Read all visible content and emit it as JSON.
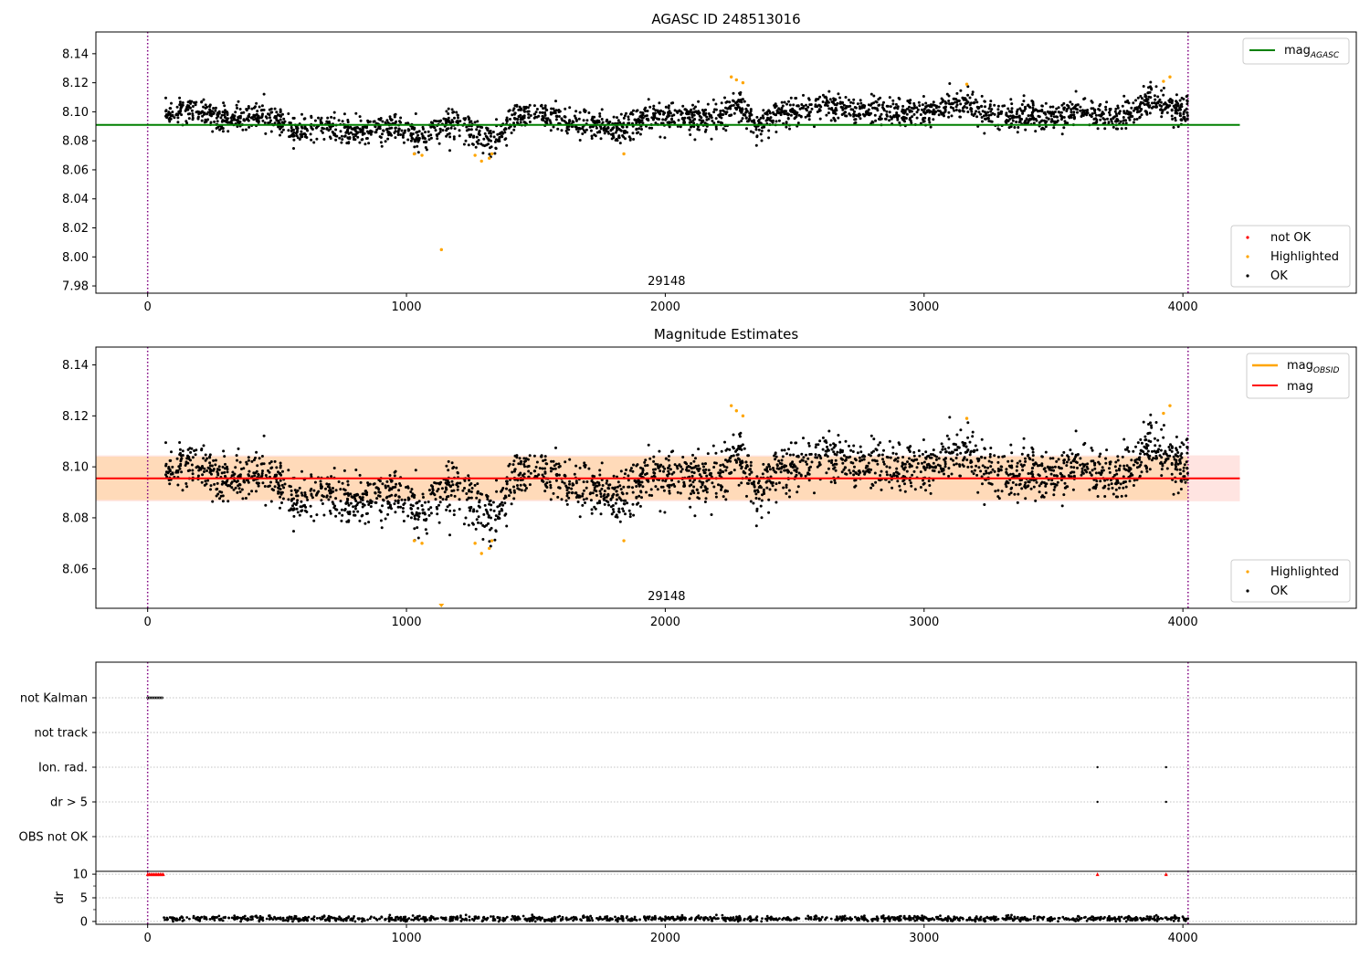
{
  "colors": {
    "ok": "#000000",
    "highlighted": "#ffa500",
    "not_ok": "#ff0000",
    "agasc_line": "#008000",
    "mag_line": "#ff0000",
    "band_inner": "#ffdab9",
    "band_outer": "#ffe4e1",
    "obs_boundary": "#800080"
  },
  "chart_data": [
    {
      "type": "scatter",
      "title": "AGASC ID 248513016",
      "xlim": [
        -200,
        4670
      ],
      "ylim": [
        7.975,
        8.155
      ],
      "xticks": [
        0,
        1000,
        2000,
        3000,
        4000
      ],
      "yticks": [
        7.98,
        8.0,
        8.02,
        8.04,
        8.06,
        8.08,
        8.1,
        8.12,
        8.14
      ],
      "grid": false,
      "obsid_label": {
        "text": "29148",
        "x": 2005
      },
      "obs_boundaries": [
        0,
        4020
      ],
      "reference_line": {
        "name": "magAGASC",
        "y": 8.091,
        "x_range": [
          -200,
          4220
        ]
      },
      "legend_top": [
        {
          "label_main": "mag",
          "label_sub": "AGASC",
          "kind": "line",
          "color": "#008000"
        }
      ],
      "legend_bottom": [
        {
          "label": "not OK",
          "kind": "point",
          "color": "#ff0000"
        },
        {
          "label": "Highlighted",
          "kind": "point",
          "color": "#ffa500"
        },
        {
          "label": "OK",
          "kind": "point",
          "color": "#000000"
        }
      ],
      "highlighted_points": [
        [
          1030,
          8.071
        ],
        [
          1060,
          8.07
        ],
        [
          1135,
          8.005
        ],
        [
          1265,
          8.07
        ],
        [
          1290,
          8.066
        ],
        [
          1320,
          8.068
        ],
        [
          1330,
          8.071
        ],
        [
          1840,
          8.071
        ],
        [
          2255,
          8.124
        ],
        [
          2275,
          8.122
        ],
        [
          2300,
          8.12
        ],
        [
          3165,
          8.119
        ],
        [
          3925,
          8.121
        ],
        [
          3950,
          8.124
        ]
      ],
      "not_ok_points": [],
      "series_trend": [
        [
          70,
          8.099
        ],
        [
          200,
          8.101
        ],
        [
          300,
          8.095
        ],
        [
          450,
          8.098
        ],
        [
          560,
          8.088
        ],
        [
          700,
          8.089
        ],
        [
          820,
          8.086
        ],
        [
          960,
          8.09
        ],
        [
          1050,
          8.082
        ],
        [
          1150,
          8.092
        ],
        [
          1230,
          8.091
        ],
        [
          1300,
          8.08
        ],
        [
          1360,
          8.083
        ],
        [
          1420,
          8.097
        ],
        [
          1560,
          8.097
        ],
        [
          1700,
          8.091
        ],
        [
          1840,
          8.087
        ],
        [
          1930,
          8.097
        ],
        [
          2050,
          8.096
        ],
        [
          2200,
          8.095
        ],
        [
          2280,
          8.105
        ],
        [
          2350,
          8.09
        ],
        [
          2450,
          8.099
        ],
        [
          2600,
          8.104
        ],
        [
          2800,
          8.101
        ],
        [
          2950,
          8.099
        ],
        [
          3150,
          8.106
        ],
        [
          3250,
          8.097
        ],
        [
          3450,
          8.097
        ],
        [
          3600,
          8.101
        ],
        [
          3750,
          8.095
        ],
        [
          3870,
          8.107
        ],
        [
          4010,
          8.1
        ]
      ],
      "scatter": 0.0065,
      "n_points": 2600,
      "x_span": [
        70,
        4020
      ]
    },
    {
      "type": "scatter",
      "title": "Magnitude Estimates",
      "xlim": [
        -200,
        4670
      ],
      "ylim": [
        8.0445,
        8.147
      ],
      "xticks": [
        0,
        1000,
        2000,
        3000,
        4000
      ],
      "yticks": [
        8.06,
        8.08,
        8.1,
        8.12,
        8.14
      ],
      "grid": false,
      "obsid_label": {
        "text": "29148",
        "x": 2005
      },
      "obs_boundaries": [
        0,
        4020
      ],
      "mag_line": {
        "y": 8.0955,
        "x_range": [
          -200,
          4220
        ]
      },
      "band_outer": [
        8.0865,
        8.1045
      ],
      "band_inner": [
        8.087,
        8.104
      ],
      "band_inner_x": [
        -200,
        4020
      ],
      "legend_top": [
        {
          "label_main": "mag",
          "label_sub": "OBSID",
          "kind": "line",
          "color": "#ffa500"
        },
        {
          "label_main": "mag",
          "label_sub": "",
          "kind": "line",
          "color": "#ff0000"
        }
      ],
      "legend_bottom": [
        {
          "label": "Highlighted",
          "kind": "point",
          "color": "#ffa500"
        },
        {
          "label": "OK",
          "kind": "point",
          "color": "#000000"
        }
      ],
      "highlighted_points": [
        [
          1030,
          8.071
        ],
        [
          1060,
          8.07
        ],
        [
          1135,
          8.045
        ],
        [
          1265,
          8.07
        ],
        [
          1290,
          8.066
        ],
        [
          1320,
          8.068
        ],
        [
          1330,
          8.071
        ],
        [
          1840,
          8.071
        ],
        [
          2255,
          8.124
        ],
        [
          2275,
          8.122
        ],
        [
          2300,
          8.12
        ],
        [
          3165,
          8.119
        ],
        [
          3925,
          8.121
        ],
        [
          3950,
          8.124
        ]
      ],
      "series_ref": 0
    },
    {
      "type": "scatter",
      "title": "",
      "xlim": [
        -200,
        4670
      ],
      "categories": [
        "not Kalman",
        "not track",
        "Ion. rad.",
        "dr > 5",
        "OBS not OK"
      ],
      "flags": {
        "not Kalman": [
          [
            0,
            60
          ]
        ],
        "not track": [],
        "Ion. rad.": [
          [
            3670,
            3670
          ],
          [
            3935,
            3935
          ]
        ],
        "dr > 5": [
          [
            3670,
            3670
          ],
          [
            3935,
            3935
          ]
        ],
        "OBS not OK": []
      },
      "grid": true,
      "obs_boundaries": [
        0,
        4020
      ]
    },
    {
      "type": "scatter",
      "title": "",
      "ylabel": "dr",
      "xlim": [
        -200,
        4670
      ],
      "ylim": [
        -0.6,
        10.6
      ],
      "xticks": [
        0,
        1000,
        2000,
        3000,
        4000
      ],
      "yticks": [
        0,
        5,
        10
      ],
      "grid": true,
      "obs_boundaries": [
        0,
        4020
      ],
      "clipped_points": [
        [
          0,
          60
        ],
        [
          3670,
          3670
        ],
        [
          3935,
          3935
        ]
      ],
      "clip_value": 10,
      "baseline_mean": 0.6,
      "baseline_spread": 0.45,
      "n_points": 1200
    }
  ]
}
